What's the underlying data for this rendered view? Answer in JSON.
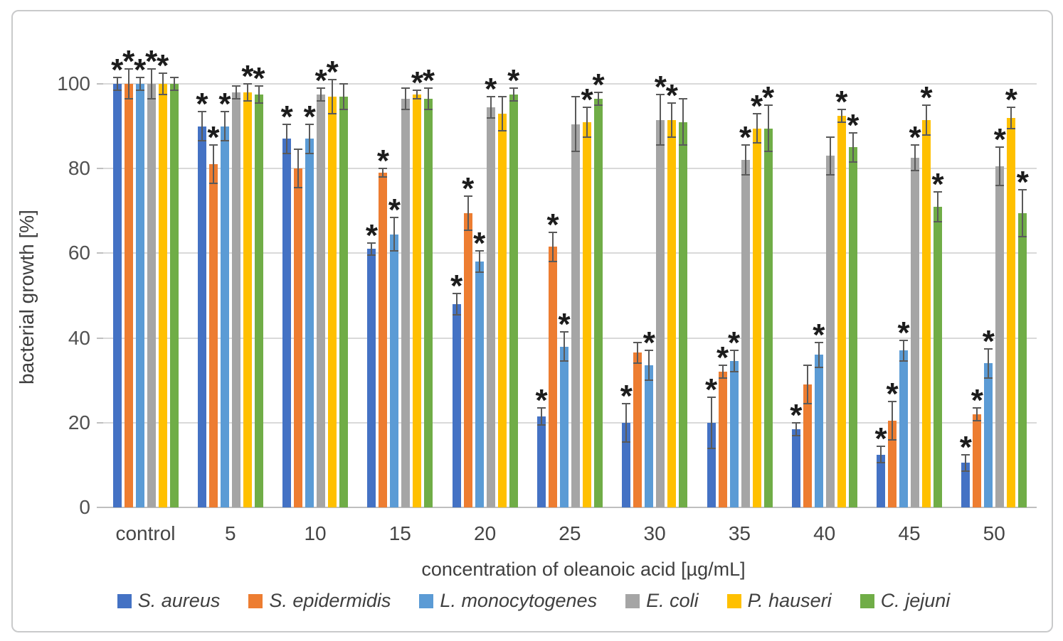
{
  "chart_data": {
    "type": "bar",
    "title": "",
    "xlabel": "concentration of oleanoic acid [µg/mL]",
    "ylabel": "bacterial growth [%]",
    "ylim": [
      0,
      100
    ],
    "yticks": [
      0,
      20,
      40,
      60,
      80,
      100
    ],
    "grid": true,
    "legend_position": "bottom",
    "significance_marker": "*",
    "categories": [
      "control",
      "5",
      "10",
      "15",
      "20",
      "25",
      "30",
      "35",
      "40",
      "45",
      "50"
    ],
    "series": [
      {
        "name": "S. aureus",
        "color": "#4472C4",
        "values": [
          100,
          90,
          87,
          61,
          48,
          21.5,
          20,
          20,
          18.5,
          12.5,
          10.5
        ],
        "errors": [
          1.5,
          3.5,
          3.5,
          1.5,
          2.5,
          2,
          4.5,
          6,
          1.5,
          2,
          2
        ],
        "significant": [
          true,
          true,
          true,
          true,
          true,
          true,
          true,
          true,
          true,
          true,
          true
        ]
      },
      {
        "name": "S. epidermidis",
        "color": "#ED7D31",
        "values": [
          100,
          81,
          80,
          79,
          69.5,
          61.5,
          36.5,
          32,
          29,
          20.5,
          22
        ],
        "errors": [
          3.5,
          4.5,
          4.5,
          1,
          4,
          3.5,
          2.5,
          1.5,
          4.5,
          4.5,
          1.5
        ],
        "significant": [
          true,
          true,
          false,
          true,
          true,
          true,
          false,
          true,
          false,
          true,
          true
        ]
      },
      {
        "name": "L. monocytogenes",
        "color": "#5B9BD5",
        "values": [
          100,
          90,
          87,
          64.5,
          58,
          38,
          33.5,
          34.5,
          36,
          37,
          34
        ],
        "errors": [
          1.5,
          3.5,
          3.5,
          4,
          2.5,
          3.5,
          3.5,
          2.5,
          3,
          2.5,
          3.5
        ],
        "significant": [
          true,
          true,
          true,
          true,
          true,
          true,
          true,
          true,
          true,
          true,
          true
        ]
      },
      {
        "name": "E. coli",
        "color": "#A5A5A5",
        "values": [
          100,
          98,
          97.5,
          96.5,
          94.5,
          90.5,
          91.5,
          82,
          83,
          82.5,
          80.5
        ],
        "errors": [
          3.5,
          1.5,
          1.5,
          2.5,
          2.5,
          6.5,
          6,
          3.5,
          4.5,
          3,
          4.5
        ],
        "significant": [
          true,
          false,
          true,
          false,
          true,
          false,
          true,
          true,
          false,
          true,
          true
        ]
      },
      {
        "name": "P. hauseri",
        "color": "#FFC000",
        "values": [
          100,
          98,
          97,
          97.5,
          93,
          91,
          91.5,
          89.5,
          92.5,
          91.5,
          92
        ],
        "errors": [
          2.5,
          2,
          4,
          1,
          4,
          3.5,
          4,
          3.5,
          1.5,
          3.5,
          2.5
        ],
        "significant": [
          true,
          true,
          true,
          true,
          false,
          true,
          true,
          true,
          true,
          true,
          true
        ]
      },
      {
        "name": "C. jejuni",
        "color": "#70AD47",
        "values": [
          100,
          97.5,
          97,
          96.5,
          97.5,
          96.5,
          91,
          89.5,
          85,
          71,
          69.5
        ],
        "errors": [
          1.5,
          2,
          3,
          2.5,
          1.5,
          1.5,
          5.5,
          5.5,
          3.5,
          3.5,
          5.5
        ],
        "significant": [
          false,
          true,
          false,
          true,
          true,
          true,
          false,
          true,
          true,
          true,
          true
        ]
      }
    ]
  }
}
